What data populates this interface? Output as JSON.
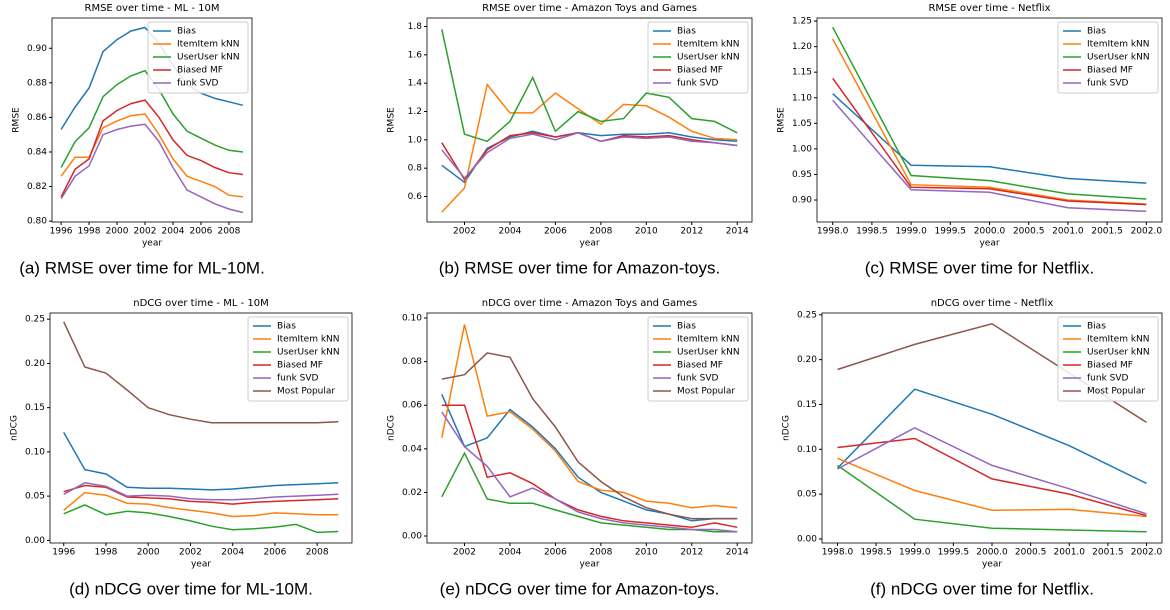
{
  "chart_data": [
    {
      "type": "line",
      "title": "RMSE over time - ML - 10M",
      "x_label": "year",
      "y_label": "RMSE",
      "caption": "(a) RMSE over time for ML-10M.",
      "legend": "upper right",
      "x": [
        1996,
        1997,
        1998,
        1999,
        2000,
        2001,
        2002,
        2003,
        2004,
        2005,
        2006,
        2007,
        2008,
        2009
      ],
      "xlim": [
        1995.35,
        2009.65
      ],
      "xticks": [
        1996,
        1998,
        2000,
        2002,
        2004,
        2006,
        2008
      ],
      "ylim": [
        0.7995,
        0.9175
      ],
      "yticks": [
        {
          "value": 0.8,
          "label": "0.80"
        },
        0.82,
        0.84,
        0.86,
        0.88,
        {
          "value": 0.9,
          "label": "0.90"
        }
      ],
      "series": [
        {
          "name": "Bias",
          "color": "#1f77b4",
          "values": [
            0.853,
            0.866,
            0.877,
            0.898,
            0.905,
            0.91,
            0.912,
            0.903,
            0.89,
            0.879,
            0.874,
            0.871,
            0.869,
            0.867
          ]
        },
        {
          "name": "ItemItem kNN",
          "color": "#ff7f0e",
          "values": [
            0.826,
            0.837,
            0.837,
            0.854,
            0.858,
            0.861,
            0.862,
            0.85,
            0.836,
            0.826,
            0.823,
            0.82,
            0.815,
            0.814
          ]
        },
        {
          "name": "UserUser kNN",
          "color": "#2ca02c",
          "values": [
            0.831,
            0.846,
            0.854,
            0.872,
            0.879,
            0.884,
            0.887,
            0.876,
            0.862,
            0.852,
            0.848,
            0.844,
            0.841,
            0.84
          ]
        },
        {
          "name": "Biased MF",
          "color": "#d62728",
          "values": [
            0.814,
            0.83,
            0.836,
            0.858,
            0.864,
            0.868,
            0.87,
            0.86,
            0.847,
            0.838,
            0.835,
            0.831,
            0.828,
            0.827
          ]
        },
        {
          "name": "funk SVD",
          "color": "#9467bd",
          "values": [
            0.813,
            0.826,
            0.832,
            0.85,
            0.853,
            0.855,
            0.856,
            0.846,
            0.831,
            0.818,
            0.814,
            0.81,
            0.807,
            0.805
          ]
        }
      ]
    },
    {
      "type": "line",
      "title": "RMSE over time - Amazon Toys and Games",
      "x_label": "year",
      "y_label": "RMSE",
      "caption": "(b) RMSE over time for Amazon-toys.",
      "legend": "upper right",
      "x": [
        2001,
        2002,
        2003,
        2004,
        2005,
        2006,
        2007,
        2008,
        2009,
        2010,
        2011,
        2012,
        2013,
        2014
      ],
      "xlim": [
        2000.35,
        2014.65
      ],
      "xticks": [
        2002,
        2004,
        2006,
        2008,
        2010,
        2012,
        2014
      ],
      "ylim": [
        0.42,
        1.86
      ],
      "yticks": [
        0.6,
        0.8,
        {
          "value": 1,
          "label": "1.0"
        },
        1.2,
        1.4,
        1.6,
        1.8
      ],
      "series": [
        {
          "name": "Bias",
          "color": "#1f77b4",
          "values": [
            0.82,
            0.7,
            0.94,
            1.02,
            1.06,
            1.02,
            1.05,
            1.03,
            1.04,
            1.04,
            1.05,
            1.02,
            1.0,
            0.99
          ]
        },
        {
          "name": "ItemItem kNN",
          "color": "#ff7f0e",
          "values": [
            0.49,
            0.66,
            1.39,
            1.19,
            1.19,
            1.33,
            1.22,
            1.11,
            1.25,
            1.24,
            1.16,
            1.06,
            1.01,
            1.0
          ]
        },
        {
          "name": "UserUser kNN",
          "color": "#2ca02c",
          "values": [
            1.78,
            1.04,
            0.99,
            1.13,
            1.44,
            1.06,
            1.2,
            1.13,
            1.15,
            1.33,
            1.3,
            1.15,
            1.13,
            1.05
          ]
        },
        {
          "name": "Biased MF",
          "color": "#d62728",
          "values": [
            0.98,
            0.72,
            0.93,
            1.03,
            1.05,
            1.02,
            1.05,
            0.99,
            1.03,
            1.02,
            1.03,
            1.0,
            0.98,
            0.96
          ]
        },
        {
          "name": "funk SVD",
          "color": "#9467bd",
          "values": [
            0.93,
            0.73,
            0.91,
            1.01,
            1.04,
            1.0,
            1.05,
            0.99,
            1.02,
            1.01,
            1.02,
            0.99,
            0.98,
            0.96
          ]
        }
      ]
    },
    {
      "type": "line",
      "title": "RMSE over time - Netflix",
      "x_label": "year",
      "y_label": "RMSE",
      "caption": "(c) RMSE over time for Netflix.",
      "legend": "upper right",
      "x": [
        1998,
        1999,
        2000,
        2001,
        2002
      ],
      "xlim": [
        1997.8,
        2002.2
      ],
      "xticks": [
        {
          "value": 1998,
          "label": "1998.0"
        },
        1998.5,
        {
          "value": 1999,
          "label": "1999.0"
        },
        1999.5,
        {
          "value": 2000,
          "label": "2000.0"
        },
        2000.5,
        {
          "value": 2001,
          "label": "2001.0"
        },
        2001.5,
        {
          "value": 2002,
          "label": "2002.0"
        }
      ],
      "ylim": [
        0.857,
        1.256
      ],
      "yticks": [
        {
          "value": 0.9,
          "label": "0.90"
        },
        0.95,
        {
          "value": 1,
          "label": "1.00"
        },
        1.05,
        {
          "value": 1.1,
          "label": "1.10"
        },
        1.15,
        {
          "value": 1.2,
          "label": "1.20"
        },
        1.25
      ],
      "series": [
        {
          "name": "Bias",
          "color": "#1f77b4",
          "values": [
            1.108,
            0.968,
            0.965,
            0.942,
            0.933
          ]
        },
        {
          "name": "ItemItem kNN",
          "color": "#ff7f0e",
          "values": [
            1.215,
            0.93,
            0.925,
            0.9,
            0.892
          ]
        },
        {
          "name": "UserUser kNN",
          "color": "#2ca02c",
          "values": [
            1.238,
            0.948,
            0.938,
            0.912,
            0.902
          ]
        },
        {
          "name": "Biased MF",
          "color": "#d62728",
          "values": [
            1.138,
            0.925,
            0.922,
            0.898,
            0.891
          ]
        },
        {
          "name": "funk SVD",
          "color": "#9467bd",
          "values": [
            1.095,
            0.92,
            0.915,
            0.885,
            0.878
          ]
        }
      ]
    },
    {
      "type": "line",
      "title": "nDCG over time - ML - 10M",
      "x_label": "year",
      "y_label": "nDCG",
      "caption": "(d) nDCG over time for ML-10M.",
      "legend": "upper right",
      "x": [
        1996,
        1997,
        1998,
        1999,
        2000,
        2001,
        2002,
        2003,
        2004,
        2005,
        2006,
        2007,
        2008,
        2009
      ],
      "xlim": [
        1995.35,
        2009.65
      ],
      "xticks": [
        1996,
        1998,
        2000,
        2002,
        2004,
        2006,
        2008
      ],
      "ylim": [
        -0.003,
        0.257
      ],
      "yticks": [
        {
          "value": 0,
          "label": "0.00"
        },
        0.05,
        {
          "value": 0.1,
          "label": "0.10"
        },
        0.15,
        {
          "value": 0.2,
          "label": "0.20"
        },
        0.25
      ],
      "series": [
        {
          "name": "Bias",
          "color": "#1f77b4",
          "values": [
            0.122,
            0.08,
            0.075,
            0.06,
            0.059,
            0.059,
            0.058,
            0.057,
            0.058,
            0.06,
            0.062,
            0.063,
            0.064,
            0.065
          ]
        },
        {
          "name": "ItemItem kNN",
          "color": "#ff7f0e",
          "values": [
            0.034,
            0.054,
            0.051,
            0.042,
            0.041,
            0.037,
            0.034,
            0.031,
            0.027,
            0.028,
            0.031,
            0.03,
            0.029,
            0.029
          ]
        },
        {
          "name": "UserUser kNN",
          "color": "#2ca02c",
          "values": [
            0.03,
            0.04,
            0.029,
            0.033,
            0.031,
            0.027,
            0.022,
            0.016,
            0.012,
            0.013,
            0.015,
            0.018,
            0.009,
            0.01
          ]
        },
        {
          "name": "Biased MF",
          "color": "#d62728",
          "values": [
            0.055,
            0.062,
            0.06,
            0.049,
            0.048,
            0.047,
            0.044,
            0.043,
            0.041,
            0.043,
            0.044,
            0.045,
            0.046,
            0.047
          ]
        },
        {
          "name": "funk SVD",
          "color": "#9467bd",
          "values": [
            0.052,
            0.065,
            0.061,
            0.05,
            0.051,
            0.05,
            0.047,
            0.046,
            0.046,
            0.047,
            0.049,
            0.05,
            0.051,
            0.052
          ]
        },
        {
          "name": "Most Popular",
          "color": "#8c564b",
          "values": [
            0.247,
            0.196,
            0.189,
            0.17,
            0.15,
            0.142,
            0.137,
            0.133,
            0.133,
            0.133,
            0.133,
            0.133,
            0.133,
            0.134
          ]
        }
      ]
    },
    {
      "type": "line",
      "title": "nDCG over time - Amazon Toys and Games",
      "x_label": "year",
      "y_label": "nDCG",
      "caption": "(e) nDCG over time for Amazon-toys.",
      "legend": "upper right",
      "x": [
        2001,
        2002,
        2003,
        2004,
        2005,
        2006,
        2007,
        2008,
        2009,
        2010,
        2011,
        2012,
        2013,
        2014
      ],
      "xlim": [
        2000.35,
        2014.65
      ],
      "xticks": [
        2002,
        2004,
        2006,
        2008,
        2010,
        2012,
        2014
      ],
      "ylim": [
        -0.0032,
        0.1023
      ],
      "yticks": [
        {
          "value": 0,
          "label": "0.00"
        },
        0.02,
        0.04,
        0.06,
        0.08,
        {
          "value": 0.1,
          "label": "0.10"
        }
      ],
      "series": [
        {
          "name": "Bias",
          "color": "#1f77b4",
          "values": [
            0.065,
            0.041,
            0.045,
            0.058,
            0.05,
            0.04,
            0.027,
            0.02,
            0.016,
            0.012,
            0.01,
            0.007,
            0.008,
            0.008
          ]
        },
        {
          "name": "ItemItem kNN",
          "color": "#ff7f0e",
          "values": [
            0.045,
            0.097,
            0.055,
            0.057,
            0.049,
            0.039,
            0.025,
            0.021,
            0.02,
            0.016,
            0.015,
            0.013,
            0.014,
            0.013
          ]
        },
        {
          "name": "UserUser kNN",
          "color": "#2ca02c",
          "values": [
            0.018,
            0.038,
            0.017,
            0.015,
            0.015,
            0.012,
            0.009,
            0.006,
            0.005,
            0.004,
            0.003,
            0.003,
            0.002,
            0.002
          ]
        },
        {
          "name": "Biased MF",
          "color": "#d62728",
          "values": [
            0.06,
            0.06,
            0.027,
            0.029,
            0.024,
            0.017,
            0.012,
            0.009,
            0.007,
            0.006,
            0.005,
            0.004,
            0.006,
            0.004
          ]
        },
        {
          "name": "funk SVD",
          "color": "#9467bd",
          "values": [
            0.057,
            0.041,
            0.032,
            0.018,
            0.022,
            0.017,
            0.011,
            0.008,
            0.006,
            0.005,
            0.004,
            0.003,
            0.003,
            0.002
          ]
        },
        {
          "name": "Most Popular",
          "color": "#8c564b",
          "values": [
            0.072,
            0.074,
            0.084,
            0.082,
            0.063,
            0.05,
            0.034,
            0.025,
            0.018,
            0.013,
            0.01,
            0.008,
            0.008,
            0.008
          ]
        }
      ]
    },
    {
      "type": "line",
      "title": "nDCG over time - Netflix",
      "x_label": "year",
      "y_label": "nDCG",
      "caption": "(f) nDCG over time for Netflix.",
      "legend": "upper right",
      "x": [
        1998,
        1999,
        2000,
        2001,
        2002
      ],
      "xlim": [
        1997.8,
        2002.2
      ],
      "xticks": [
        {
          "value": 1998,
          "label": "1998.0"
        },
        1998.5,
        {
          "value": 1999,
          "label": "1999.0"
        },
        1999.5,
        {
          "value": 2000,
          "label": "2000.0"
        },
        2000.5,
        {
          "value": 2001,
          "label": "2001.0"
        },
        2001.5,
        {
          "value": 2002,
          "label": "2002.0"
        }
      ],
      "ylim": [
        -0.0045,
        0.252
      ],
      "yticks": [
        {
          "value": 0,
          "label": "0.00"
        },
        0.05,
        {
          "value": 0.1,
          "label": "0.10"
        },
        0.15,
        {
          "value": 0.2,
          "label": "0.20"
        },
        0.25
      ],
      "series": [
        {
          "name": "Bias",
          "color": "#1f77b4",
          "values": [
            0.079,
            0.167,
            0.139,
            0.104,
            0.062
          ]
        },
        {
          "name": "ItemItem kNN",
          "color": "#ff7f0e",
          "values": [
            0.09,
            0.054,
            0.032,
            0.033,
            0.025
          ]
        },
        {
          "name": "UserUser kNN",
          "color": "#2ca02c",
          "values": [
            0.082,
            0.022,
            0.012,
            0.01,
            0.008
          ]
        },
        {
          "name": "Biased MF",
          "color": "#d62728",
          "values": [
            0.102,
            0.112,
            0.067,
            0.05,
            0.026
          ]
        },
        {
          "name": "funk SVD",
          "color": "#9467bd",
          "values": [
            0.078,
            0.124,
            0.082,
            0.056,
            0.028
          ]
        },
        {
          "name": "Most Popular",
          "color": "#8c564b",
          "values": [
            0.189,
            0.217,
            0.24,
            0.185,
            0.13
          ]
        }
      ]
    }
  ]
}
